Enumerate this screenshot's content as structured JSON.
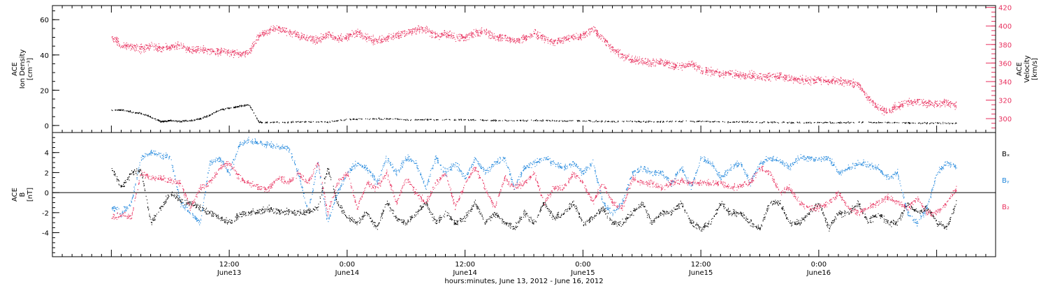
{
  "chart_data": [
    {
      "type": "scatter",
      "panel": "top",
      "ylabel_lines": [
        "ACE",
        "Ion Density",
        "[cm⁻³]"
      ],
      "y2label_lines": [
        "ACE",
        "Velocity",
        "[km/s]"
      ],
      "ylim": [
        -4,
        68
      ],
      "y2lim": [
        285,
        422
      ],
      "yticks": [
        "0",
        "20",
        "40",
        "60"
      ],
      "y2ticks": [
        "300",
        "320",
        "340",
        "360",
        "380",
        "400",
        "420"
      ],
      "colors": {
        "density": "#000000",
        "velocity": "#e8305e"
      },
      "series": [
        {
          "key": "density",
          "axis": "left",
          "x": [
            0,
            1,
            2,
            3,
            4,
            5,
            5.5,
            6,
            7,
            8,
            9,
            10,
            11,
            12,
            13,
            14,
            15,
            16,
            18,
            20,
            22,
            24,
            26,
            28,
            30,
            32,
            34,
            36,
            38,
            40,
            42,
            44,
            46,
            48,
            50,
            52,
            54,
            56,
            58,
            60,
            62,
            64,
            66,
            68,
            70,
            72,
            74,
            76,
            78,
            80,
            82,
            84,
            86
          ],
          "y": [
            9,
            9,
            8,
            7,
            5,
            2.5,
            2.5,
            3,
            2.5,
            3,
            4,
            6,
            9,
            10,
            11,
            12,
            2,
            2,
            2,
            2.2,
            2.2,
            3.5,
            4,
            4,
            3.5,
            3.5,
            3.5,
            3.3,
            3.2,
            3,
            3,
            3,
            2.8,
            2.8,
            2.5,
            2.5,
            2.5,
            2.3,
            2.5,
            2.5,
            2.2,
            2.2,
            2,
            2,
            1.8,
            1.8,
            1.8,
            2,
            1.8,
            1.8,
            1.5,
            1.5,
            1.5
          ]
        },
        {
          "key": "velocity",
          "axis": "right",
          "x": [
            0,
            1,
            2,
            3,
            4,
            5,
            6,
            7,
            8,
            9,
            10,
            11,
            12,
            13,
            14,
            15,
            16,
            17,
            18,
            19,
            20,
            21,
            22,
            23,
            24,
            25,
            26,
            27,
            28,
            29,
            30,
            31,
            32,
            33,
            34,
            35,
            36,
            37,
            38,
            39,
            40,
            41,
            42,
            43,
            44,
            45,
            46,
            47,
            48,
            49,
            50,
            51,
            52,
            53,
            54,
            55,
            56,
            57,
            58,
            59,
            60,
            61,
            62,
            63,
            64,
            65,
            66,
            67,
            68,
            69,
            70,
            71,
            72,
            73,
            74,
            75,
            76,
            77,
            78,
            79,
            80,
            81,
            82,
            83,
            84,
            85,
            86
          ],
          "y": [
            388,
            380,
            378,
            376,
            378,
            376,
            378,
            380,
            374,
            375,
            374,
            373,
            372,
            370,
            372,
            390,
            395,
            398,
            393,
            390,
            387,
            385,
            392,
            386,
            389,
            393,
            387,
            384,
            387,
            390,
            393,
            396,
            396,
            390,
            392,
            388,
            388,
            393,
            394,
            389,
            388,
            385,
            387,
            392,
            387,
            382,
            386,
            388,
            390,
            398,
            386,
            376,
            368,
            364,
            362,
            360,
            362,
            358,
            356,
            360,
            352,
            351,
            349,
            349,
            347,
            347,
            345,
            346,
            346,
            344,
            342,
            341,
            343,
            340,
            341,
            340,
            338,
            322,
            312,
            308,
            314,
            318,
            319,
            317,
            316,
            318,
            314
          ]
        }
      ]
    },
    {
      "type": "scatter",
      "panel": "bottom",
      "ylabel_lines": [
        "ACE",
        "B",
        "[nT]"
      ],
      "ylim": [
        -6.4,
        6.0
      ],
      "yticks": [
        "-4",
        "-2",
        "0",
        "2",
        "4"
      ],
      "legend": [
        "Bₓ",
        "Bᵧ",
        "B₂"
      ],
      "colors": {
        "bx": "#000000",
        "by": "#1f86dc",
        "bz": "#e8305e"
      },
      "series": [
        {
          "key": "bx",
          "x": [
            0,
            1,
            2,
            3,
            4,
            5,
            6,
            7,
            8,
            9,
            10,
            11,
            12,
            13,
            14,
            15,
            16,
            17,
            18,
            19,
            20,
            21,
            22,
            23,
            24,
            25,
            26,
            27,
            28,
            29,
            30,
            31,
            32,
            33,
            34,
            35,
            36,
            37,
            38,
            39,
            40,
            41,
            42,
            43,
            44,
            45,
            46,
            47,
            48,
            49,
            50,
            51,
            52,
            53,
            54,
            55,
            56,
            57,
            58,
            59,
            60,
            61,
            62,
            63,
            64,
            65,
            66,
            67,
            68,
            69,
            70,
            71,
            72,
            73,
            74,
            75,
            76,
            77,
            78,
            79,
            80,
            81,
            82,
            83,
            84,
            85,
            86
          ],
          "y": [
            2.5,
            0.5,
            2.0,
            2.2,
            -3.0,
            -1.5,
            0.0,
            -0.8,
            -1.0,
            -1.5,
            -2.0,
            -2.5,
            -3.0,
            -2.2,
            -2.0,
            -1.8,
            -1.6,
            -1.8,
            -1.9,
            -2.0,
            -1.8,
            -1.5,
            2.5,
            -1.0,
            -2.5,
            -3.0,
            -2.0,
            -3.5,
            -1.0,
            -2.5,
            -3.0,
            -2.0,
            -1.0,
            -3.0,
            -2.0,
            -3.0,
            -2.5,
            -1.0,
            -3.0,
            -2.0,
            -3.0,
            -3.5,
            -2.0,
            -3.0,
            -1.0,
            -2.5,
            -2.0,
            -1.0,
            -3.0,
            -2.5,
            -1.5,
            -3.0,
            -3.0,
            -2.0,
            -1.0,
            -3.0,
            -2.0,
            -2.0,
            -1.0,
            -3.0,
            -3.5,
            -3.0,
            -1.0,
            -2.0,
            -2.0,
            -3.0,
            -3.5,
            -1.0,
            -1.0,
            -3.0,
            -3.0,
            -2.0,
            -1.0,
            -3.5,
            -2.0,
            -2.0,
            -1.0,
            -3.0,
            -2.0,
            -3.0,
            -3.0,
            -1.0,
            -2.0,
            -1.5,
            -3.0,
            -3.5,
            -1.0
          ]
        },
        {
          "key": "by",
          "x": [
            0,
            1,
            2,
            3,
            4,
            5,
            6,
            7,
            8,
            9,
            10,
            11,
            12,
            13,
            14,
            15,
            16,
            17,
            18,
            19,
            20,
            21,
            22,
            23,
            24,
            25,
            26,
            27,
            28,
            29,
            30,
            31,
            32,
            33,
            34,
            35,
            36,
            37,
            38,
            39,
            40,
            41,
            42,
            43,
            44,
            45,
            46,
            47,
            48,
            49,
            50,
            51,
            52,
            53,
            54,
            55,
            56,
            57,
            58,
            59,
            60,
            61,
            62,
            63,
            64,
            65,
            66,
            67,
            68,
            69,
            70,
            71,
            72,
            73,
            74,
            75,
            76,
            77,
            78,
            79,
            80,
            81,
            82,
            83,
            84,
            85,
            86
          ],
          "y": [
            -1.5,
            -2.0,
            -1.0,
            3.5,
            4.0,
            3.8,
            3.5,
            -1.0,
            -2.0,
            -3.0,
            3.0,
            3.5,
            2.0,
            4.8,
            5.2,
            5.0,
            4.8,
            4.6,
            4.5,
            2.0,
            -2.0,
            3.0,
            -3.0,
            0.0,
            2.0,
            3.0,
            2.5,
            1.0,
            3.5,
            2.0,
            3.5,
            3.0,
            0.5,
            3.5,
            2.0,
            3.0,
            1.5,
            3.5,
            2.0,
            3.0,
            3.5,
            0.5,
            2.5,
            3.0,
            3.5,
            3.0,
            2.5,
            3.0,
            2.0,
            3.0,
            -1.0,
            -2.0,
            -1.0,
            2.0,
            2.5,
            2.0,
            2.0,
            1.0,
            2.5,
            0.5,
            3.5,
            3.0,
            1.5,
            2.5,
            3.0,
            1.0,
            3.0,
            3.5,
            3.2,
            2.5,
            3.5,
            3.5,
            3.3,
            3.5,
            2.0,
            2.5,
            3.0,
            2.8,
            2.5,
            1.5,
            2.0,
            -2.0,
            -3.0,
            -1.5,
            2.0,
            3.0,
            2.5
          ]
        },
        {
          "key": "bz",
          "x": [
            0,
            1,
            2,
            3,
            4,
            5,
            6,
            7,
            8,
            9,
            10,
            11,
            12,
            13,
            14,
            15,
            16,
            17,
            18,
            19,
            20,
            21,
            22,
            23,
            24,
            25,
            26,
            27,
            28,
            29,
            30,
            31,
            32,
            33,
            34,
            35,
            36,
            37,
            38,
            39,
            40,
            41,
            42,
            43,
            44,
            45,
            46,
            47,
            48,
            49,
            50,
            51,
            52,
            53,
            54,
            55,
            56,
            57,
            58,
            59,
            60,
            61,
            62,
            63,
            64,
            65,
            66,
            67,
            68,
            69,
            70,
            71,
            72,
            73,
            74,
            75,
            76,
            77,
            78,
            79,
            80,
            81,
            82,
            83,
            84,
            85,
            86
          ],
          "y": [
            -2.5,
            -2.2,
            -2.5,
            2.0,
            1.5,
            1.5,
            1.2,
            1.0,
            -1.5,
            0.5,
            1.0,
            2.5,
            3.0,
            1.5,
            1.0,
            0.5,
            0.5,
            1.5,
            1.0,
            2.0,
            1.0,
            3.0,
            -2.0,
            1.0,
            2.0,
            -1.5,
            1.0,
            0.5,
            2.0,
            -1.0,
            1.5,
            0.0,
            -1.0,
            1.0,
            2.0,
            -1.5,
            1.0,
            2.5,
            0.5,
            -1.5,
            1.5,
            0.5,
            1.0,
            2.0,
            -1.0,
            0.5,
            0.5,
            2.0,
            1.0,
            -1.0,
            1.0,
            -1.0,
            -1.5,
            1.5,
            1.0,
            1.0,
            0.5,
            1.0,
            1.2,
            1.0,
            1.0,
            1.0,
            1.0,
            0.5,
            0.7,
            1.0,
            2.5,
            2.0,
            0.0,
            0.5,
            -1.0,
            -1.5,
            -1.5,
            -1.0,
            0.0,
            -1.5,
            -2.0,
            -1.5,
            -1.0,
            -0.5,
            -1.0,
            -1.5,
            -0.5,
            -2.0,
            -2.0,
            -1.0,
            0.5
          ]
        }
      ]
    }
  ],
  "x_axis": {
    "range_hours": [
      -6,
      90
    ],
    "ticks": [
      {
        "h": 12,
        "time": "12:00",
        "date": "June13"
      },
      {
        "h": 24,
        "time": "0:00",
        "date": "June14"
      },
      {
        "h": 36,
        "time": "12:00",
        "date": "June14"
      },
      {
        "h": 48,
        "time": "0:00",
        "date": "June15"
      },
      {
        "h": 60,
        "time": "12:00",
        "date": "June15"
      },
      {
        "h": 72,
        "time": "0:00",
        "date": "June16"
      }
    ],
    "title": "hours:minutes, June 13, 2012 - June 16, 2012"
  }
}
